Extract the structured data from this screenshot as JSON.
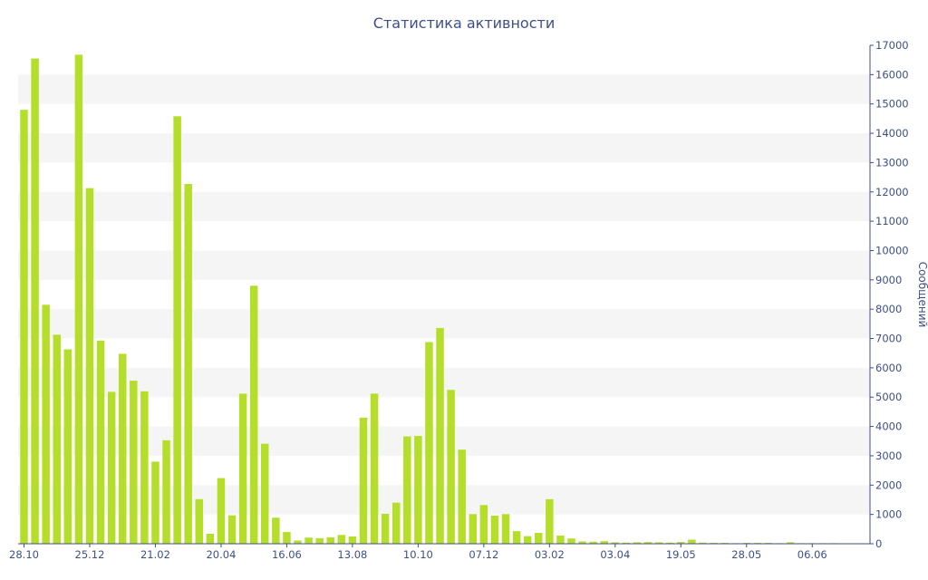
{
  "chart_data": {
    "type": "bar",
    "title": "Статистика активности",
    "ylabel": "Сообщений",
    "xlabel": "",
    "ylim": [
      0,
      17000
    ],
    "y_ticks": [
      0,
      1000,
      2000,
      3000,
      4000,
      5000,
      6000,
      7000,
      8000,
      9000,
      10000,
      11000,
      12000,
      13000,
      14000,
      15000,
      16000,
      17000
    ],
    "y_axis_position": "right",
    "x_tick_labels": [
      "28.10",
      "25.12",
      "21.02",
      "20.04",
      "16.06",
      "13.08",
      "10.10",
      "07.12",
      "03.02",
      "03.04",
      "19.05",
      "28.05",
      "06.06"
    ],
    "x_tick_label_bar_index": [
      0,
      6,
      12,
      18,
      24,
      30,
      36,
      42,
      48,
      54,
      60,
      66,
      72
    ],
    "grid": "alternating horizontal bands",
    "colors": {
      "bar": "#b5de2b",
      "band": "#f5f5f5",
      "text": "#3e4f8a",
      "axis": "#3e4f8a"
    },
    "values": [
      14800,
      16550,
      8150,
      7130,
      6630,
      16680,
      12130,
      6930,
      5180,
      6480,
      5560,
      5200,
      2800,
      3530,
      14580,
      12270,
      1520,
      340,
      2240,
      970,
      5120,
      8800,
      3410,
      890,
      400,
      110,
      210,
      190,
      220,
      300,
      250,
      4300,
      5120,
      1020,
      1400,
      3660,
      3680,
      6880,
      7360,
      5250,
      3210,
      1010,
      1320,
      960,
      1010,
      430,
      260,
      370,
      1520,
      280,
      180,
      80,
      70,
      90,
      50,
      40,
      50,
      60,
      50,
      40,
      60,
      140,
      40,
      30,
      30,
      20,
      30,
      30,
      30,
      20,
      50,
      20,
      20,
      20,
      20
    ]
  }
}
